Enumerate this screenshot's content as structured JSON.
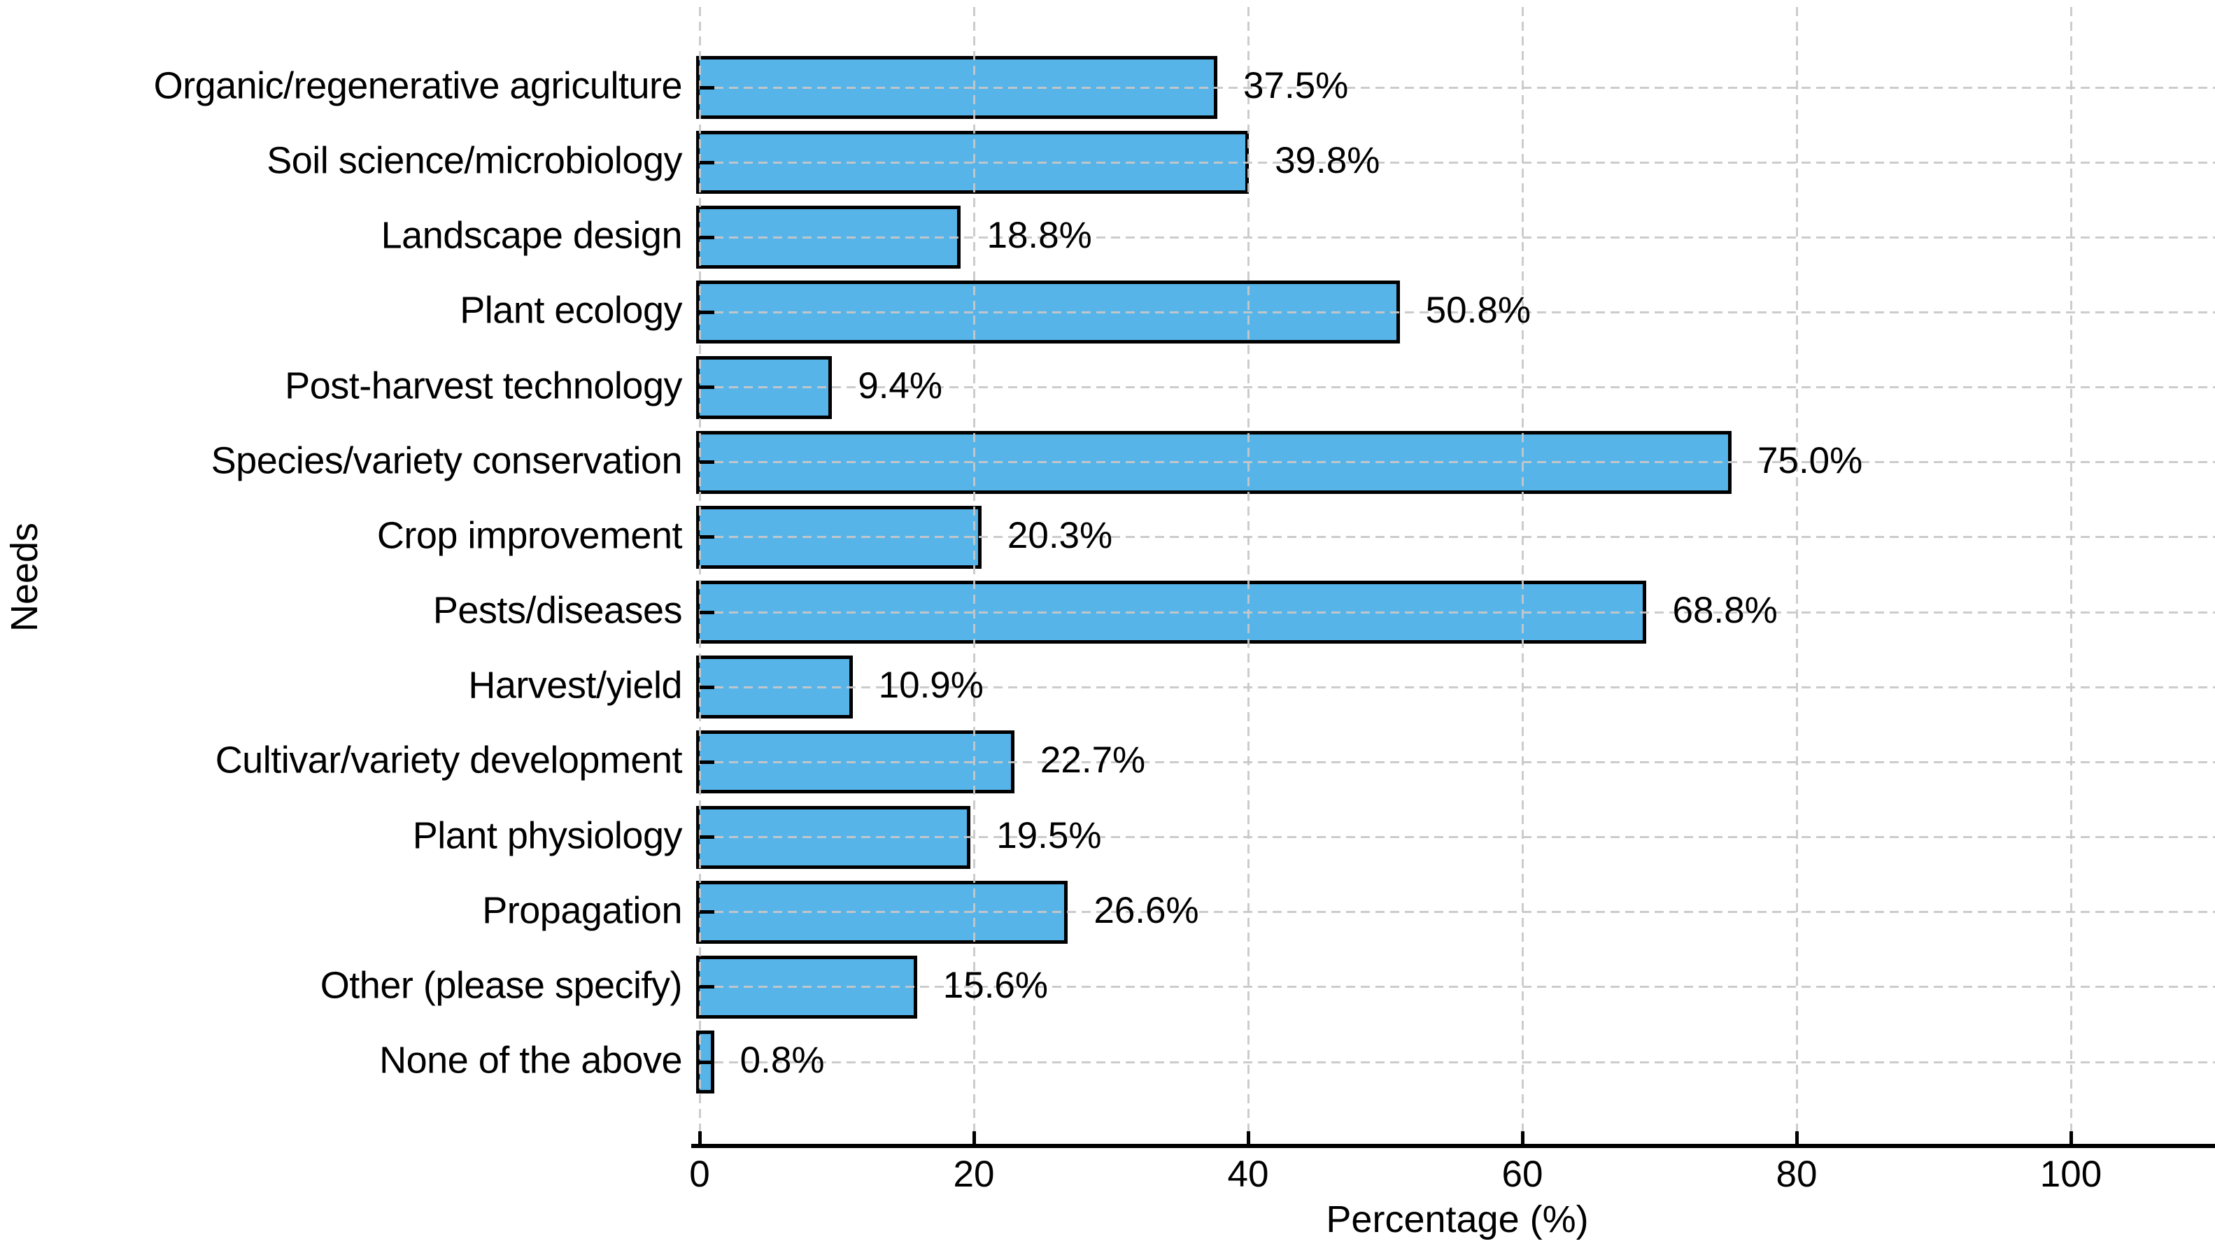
{
  "chart_data": {
    "type": "bar",
    "orientation": "horizontal",
    "title": "",
    "xlabel": "Percentage (%)",
    "ylabel": "Needs",
    "categories": [
      "Organic/regenerative agriculture",
      "Soil science/microbiology",
      "Landscape design",
      "Plant ecology",
      "Post-harvest technology",
      "Species/variety conservation",
      "Crop improvement",
      "Pests/diseases",
      "Harvest/yield",
      "Cultivar/variety development",
      "Plant physiology",
      "Propagation",
      "Other (please specify)",
      "None of the above"
    ],
    "values": [
      37.5,
      39.8,
      18.8,
      50.8,
      9.4,
      75.0,
      20.3,
      68.8,
      10.9,
      22.7,
      19.5,
      26.6,
      15.6,
      0.8
    ],
    "value_labels": [
      "37.5%",
      "39.8%",
      "18.8%",
      "50.8%",
      "9.4%",
      "75.0%",
      "20.3%",
      "68.8%",
      "10.9%",
      "22.7%",
      "19.5%",
      "26.6%",
      "15.6%",
      "0.8%"
    ],
    "xticks": [
      0,
      20,
      40,
      60,
      80,
      100
    ],
    "xtick_labels": [
      "0",
      "20",
      "40",
      "60",
      "80",
      "100"
    ],
    "xlim": [
      0,
      110.5
    ],
    "grid": {
      "visible": true,
      "style": "dashed",
      "grid_on_top_of_bars": true
    },
    "legend": {
      "visible": false
    },
    "colors": {
      "bar_fill": "#56B4E9",
      "bar_edge": "#000000",
      "grid": "#c8c8c8",
      "axis": "#000000",
      "text": "#000000",
      "background": "#ffffff"
    }
  }
}
